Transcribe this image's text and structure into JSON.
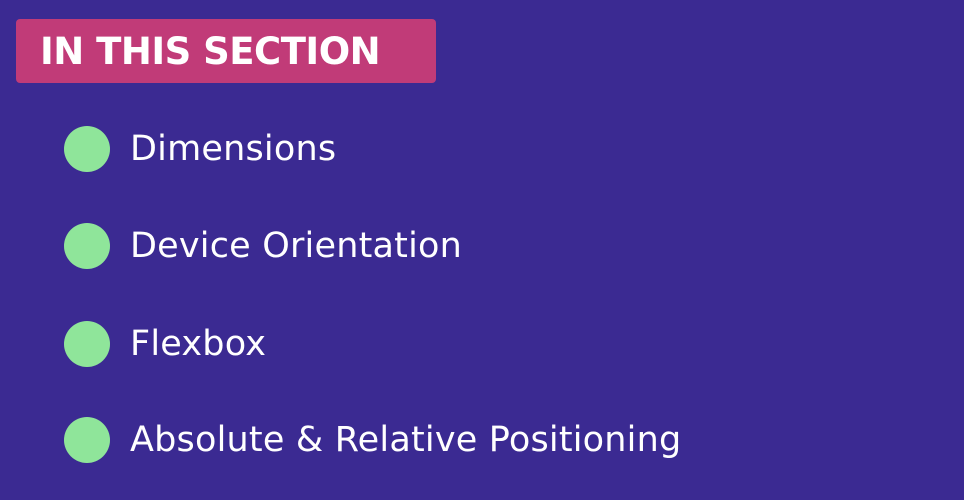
{
  "section": {
    "title": "IN THIS SECTION",
    "badge_color": "#c13b78"
  },
  "background_color": "#3b2a92",
  "bullet_color": "#8fe59a",
  "topics": [
    {
      "label": "Dimensions",
      "icon": "green-dot-icon"
    },
    {
      "label": "Device Orientation",
      "icon": "green-dot-icon"
    },
    {
      "label": "Flexbox",
      "icon": "green-dot-icon"
    },
    {
      "label": "Absolute & Relative Positioning",
      "icon": "green-dot-icon"
    }
  ]
}
